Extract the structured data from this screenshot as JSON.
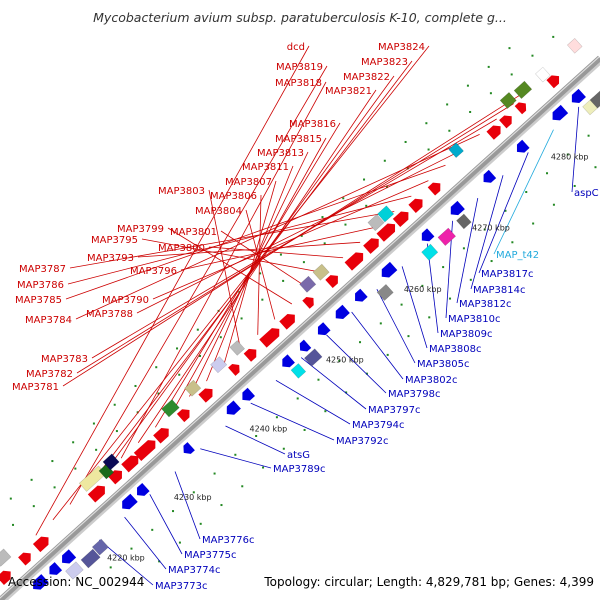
{
  "title": "Mycobacterium avium subsp. paratuberculosis K-10, complete g...",
  "footer": {
    "accession": "Accession: NC_002944",
    "summary": "Topology: circular; Length: 4,829,781 bp; Genes: 4,399"
  },
  "colors": {
    "forward": "#e8000a",
    "reverse": "#0000e0",
    "forward_label": "#cc0000",
    "reverse_label": "#0000bb",
    "highlight_label": "#22aadd",
    "backbone": "#999999",
    "tick": "#228822"
  },
  "ticks": [
    {
      "label": "4220 kbp"
    },
    {
      "label": "4230 kbp"
    },
    {
      "label": "4240 kbp"
    },
    {
      "label": "4250 kbp"
    },
    {
      "label": "4260 kbp"
    },
    {
      "label": "4270 kbp"
    },
    {
      "label": "4280 kbp"
    }
  ],
  "top_labels": [
    "dcd",
    "MAP3824",
    "MAP3819",
    "MAP3823",
    "MAP3822",
    "MAP3818",
    "MAP3821",
    "MAP3816",
    "MAP3815",
    "MAP3813",
    "MAP3811",
    "MAP3807",
    "MAP3803",
    "MAP3806",
    "MAP3804",
    "MAP3799",
    "MAP3801",
    "MAP3795",
    "MAP3800",
    "MAP3793",
    "MAP3796",
    "MAP3787",
    "MAP3786",
    "MAP3790",
    "MAP3785",
    "MAP3788",
    "MAP3784",
    "MAP3783",
    "MAP3782",
    "MAP3781"
  ],
  "bottom_labels": [
    "aspC",
    "MAP_t42",
    "MAP3817c",
    "MAP3814c",
    "MAP3812c",
    "MAP3810c",
    "MAP3809c",
    "MAP3808c",
    "MAP3805c",
    "MAP3802c",
    "MAP3798c",
    "MAP3797c",
    "MAP3794c",
    "MAP3792c",
    "atsG",
    "MAP3789c",
    "MAP3776c",
    "MAP3775c",
    "MAP3774c",
    "MAP3773c"
  ]
}
